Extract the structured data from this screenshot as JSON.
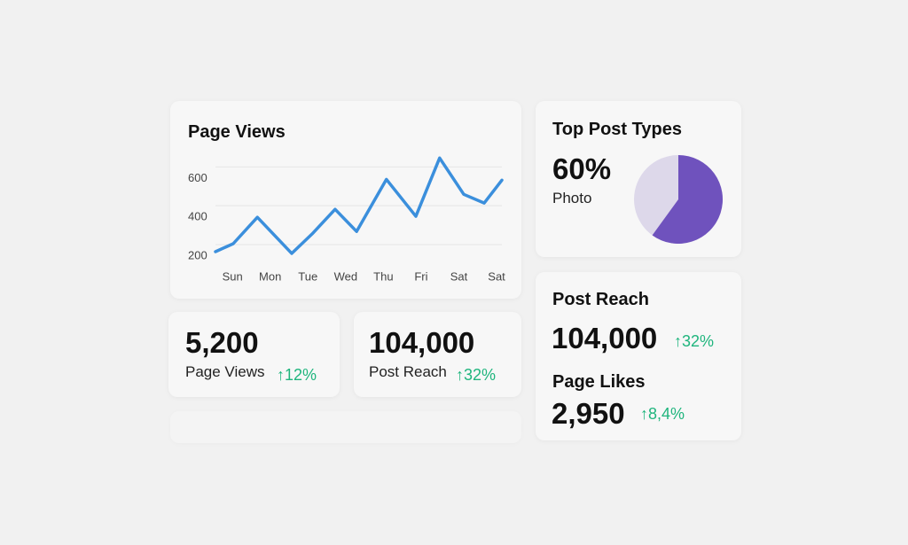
{
  "page_views_card": {
    "title": "Page Views",
    "chart": {
      "type": "line",
      "x": [
        -0.45,
        0.02,
        0.66,
        1.57,
        2.11,
        2.72,
        3.29,
        4.08,
        4.86,
        5.49,
        6.13,
        6.67,
        7.14
      ],
      "values": [
        223,
        264,
        400,
        214,
        314,
        441,
        327,
        595,
        405,
        705,
        518,
        473,
        591
      ],
      "color": "#3b8fdc",
      "xlim": [
        -0.45,
        7.14
      ],
      "xticks": [
        {
          "value": 0,
          "label": "Sun"
        },
        {
          "value": 1,
          "label": "Mon"
        },
        {
          "value": 2,
          "label": "Tue"
        },
        {
          "value": 3,
          "label": "Wed"
        },
        {
          "value": 4,
          "label": "Thu"
        },
        {
          "value": 5,
          "label": "Fri"
        },
        {
          "value": 6,
          "label": "Sat"
        },
        {
          "value": 7,
          "label": "Sat"
        }
      ],
      "ylim": [
        150,
        720
      ],
      "yticks": [
        200,
        400,
        600
      ],
      "grid": true
    }
  },
  "top_post_types": {
    "title": "Top Post Types",
    "value": 60,
    "value_label": "60%",
    "label": "Photo",
    "color": "#6f52bd",
    "rest_color": "#ddd8ea"
  },
  "stats": [
    {
      "value": "5,200",
      "label": "Page Views",
      "change": "12%"
    },
    {
      "value": "104,000",
      "label": "Post Reach",
      "change": "32%"
    }
  ],
  "side_stats": [
    {
      "title": "Post Reach",
      "value": "104,000",
      "change": "32%"
    },
    {
      "title": "Page Likes",
      "value": "2,950",
      "change": "8,4%"
    }
  ]
}
